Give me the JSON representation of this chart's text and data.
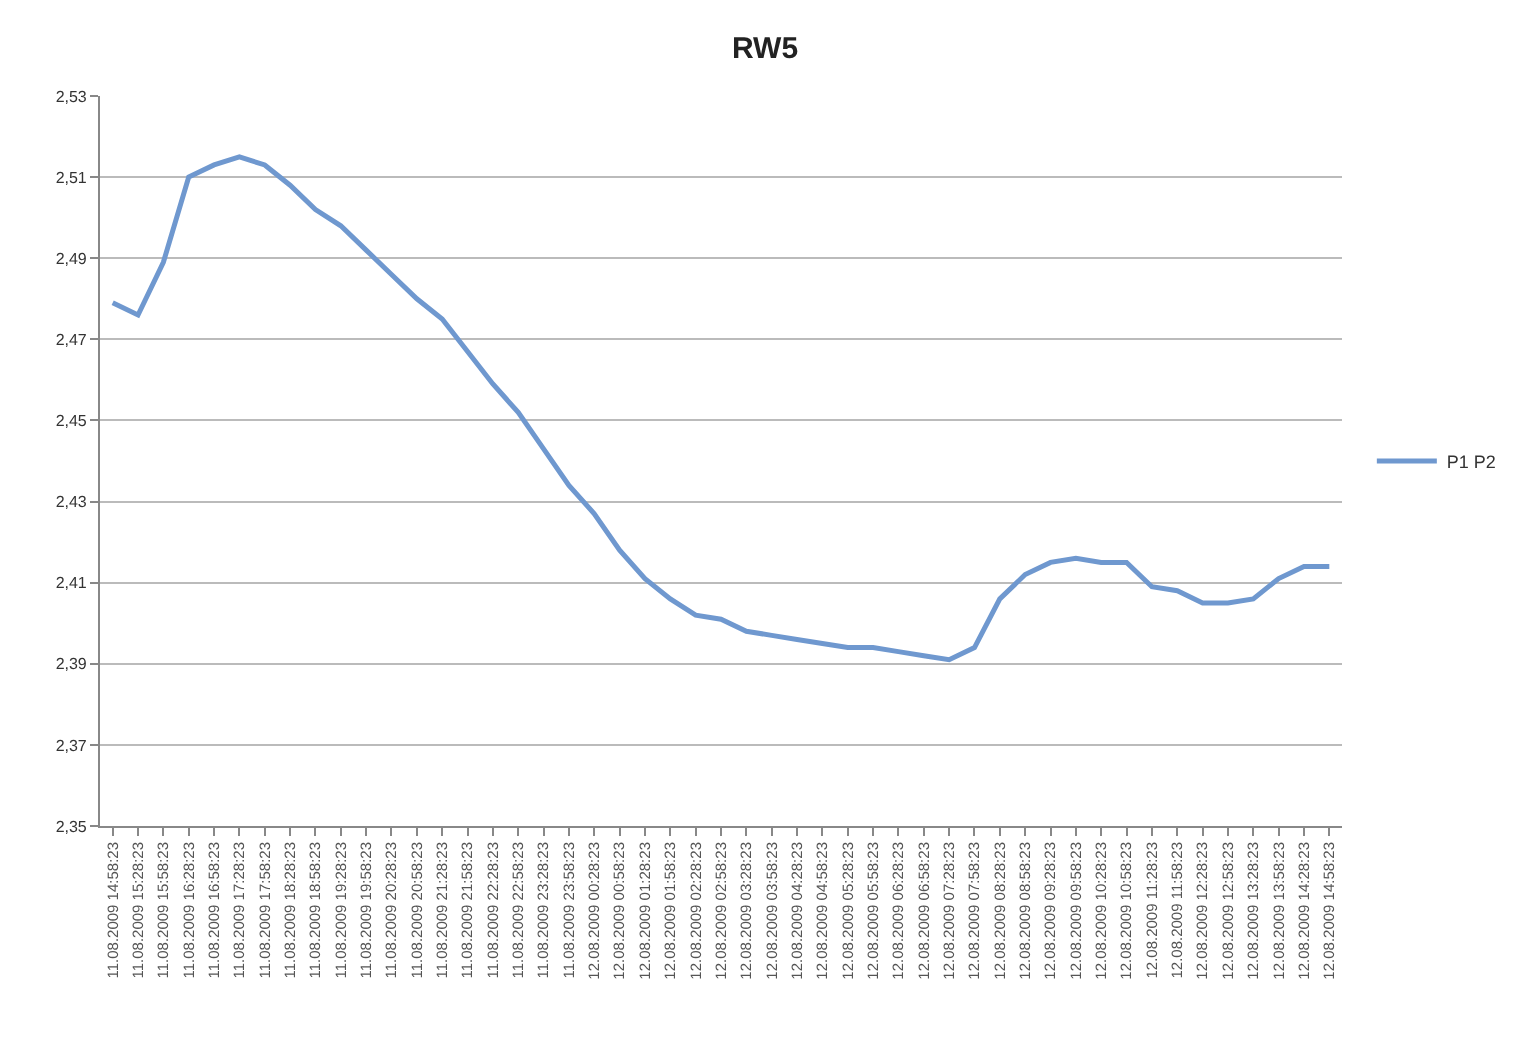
{
  "chart_data": {
    "type": "line",
    "title": "RW5",
    "categories": [
      "11.08.2009 14:58:23",
      "11.08.2009 15:28:23",
      "11.08.2009 15:58:23",
      "11.08.2009 16:28:23",
      "11.08.2009 16:58:23",
      "11.08.2009 17:28:23",
      "11.08.2009 17:58:23",
      "11.08.2009 18:28:23",
      "11.08.2009 18:58:23",
      "11.08.2009 19:28:23",
      "11.08.2009 19:58:23",
      "11.08.2009 20:28:23",
      "11.08.2009 20:58:23",
      "11.08.2009 21:28:23",
      "11.08.2009 21:58:23",
      "11.08.2009 22:28:23",
      "11.08.2009 22:58:23",
      "11.08.2009 23:28:23",
      "11.08.2009 23:58:23",
      "12.08.2009 00:28:23",
      "12.08.2009 00:58:23",
      "12.08.2009 01:28:23",
      "12.08.2009 01:58:23",
      "12.08.2009 02:28:23",
      "12.08.2009 02:58:23",
      "12.08.2009 03:28:23",
      "12.08.2009 03:58:23",
      "12.08.2009 04:28:23",
      "12.08.2009 04:58:23",
      "12.08.2009 05:28:23",
      "12.08.2009 05:58:23",
      "12.08.2009 06:28:23",
      "12.08.2009 06:58:23",
      "12.08.2009 07:28:23",
      "12.08.2009 07:58:23",
      "12.08.2009 08:28:23",
      "12.08.2009 08:58:23",
      "12.08.2009 09:28:23",
      "12.08.2009 09:58:23",
      "12.08.2009 10:28:23",
      "12.08.2009 10:58:23",
      "12.08.2009 11:28:23",
      "12.08.2009 11:58:23",
      "12.08.2009 12:28:23",
      "12.08.2009 12:58:23",
      "12.08.2009 13:28:23",
      "12.08.2009 13:58:23",
      "12.08.2009 14:28:23",
      "12.08.2009 14:58:23"
    ],
    "series": [
      {
        "name": "P1 P2",
        "color": "#6f98cf",
        "values": [
          2.479,
          2.476,
          2.489,
          2.51,
          2.513,
          2.515,
          2.513,
          2.508,
          2.502,
          2.498,
          2.492,
          2.486,
          2.48,
          2.475,
          2.467,
          2.459,
          2.452,
          2.443,
          2.434,
          2.427,
          2.418,
          2.411,
          2.406,
          2.402,
          2.401,
          2.398,
          2.397,
          2.396,
          2.395,
          2.394,
          2.394,
          2.393,
          2.392,
          2.391,
          2.394,
          2.406,
          2.412,
          2.415,
          2.416,
          2.415,
          2.415,
          2.409,
          2.408,
          2.405,
          2.405,
          2.406,
          2.411,
          2.414,
          2.414
        ]
      }
    ],
    "ylim": [
      2.35,
      2.53
    ],
    "yticks": [
      {
        "value": 2.35,
        "label": "2,35"
      },
      {
        "value": 2.37,
        "label": "2,37"
      },
      {
        "value": 2.39,
        "label": "2,39"
      },
      {
        "value": 2.41,
        "label": "2,41"
      },
      {
        "value": 2.43,
        "label": "2,43"
      },
      {
        "value": 2.45,
        "label": "2,45"
      },
      {
        "value": 2.47,
        "label": "2,47"
      },
      {
        "value": 2.49,
        "label": "2,49"
      },
      {
        "value": 2.51,
        "label": "2,51"
      },
      {
        "value": 2.53,
        "label": "2,53"
      }
    ],
    "grid": "y",
    "legend": "right",
    "marker": "none",
    "line_style": "solid"
  }
}
